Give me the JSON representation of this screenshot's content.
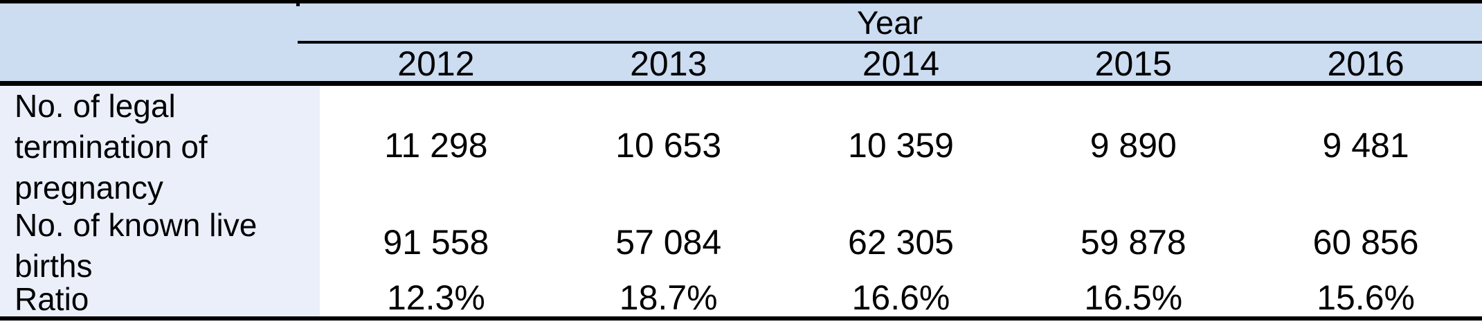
{
  "colors": {
    "header_bg": "#ccdcf1",
    "label_column_bg": "#eaeffa",
    "border": "#000000",
    "text": "#000000"
  },
  "table": {
    "year_header": "Year",
    "years": [
      "2012",
      "2013",
      "2014",
      "2015",
      "2016"
    ],
    "rows": [
      {
        "label": "No. of legal\ntermination of\npregnancy",
        "values": [
          "11 298",
          "10 653",
          "10 359",
          "9 890",
          "9 481"
        ]
      },
      {
        "label": "No. of known live\nbirths",
        "values": [
          "91 558",
          "57 084",
          "62 305",
          "59 878",
          "60 856"
        ]
      },
      {
        "label": "Ratio",
        "values": [
          "12.3%",
          "18.7%",
          "16.6%",
          "16.5%",
          "15.6%"
        ]
      }
    ]
  },
  "chart_data": {
    "type": "table",
    "title": "",
    "column_group_header": "Year",
    "categories": [
      "2012",
      "2013",
      "2014",
      "2015",
      "2016"
    ],
    "series": [
      {
        "name": "No. of legal termination of pregnancy",
        "values": [
          11298,
          10653,
          10359,
          9890,
          9481
        ]
      },
      {
        "name": "No. of known live births",
        "values": [
          91558,
          57084,
          62305,
          59878,
          60856
        ]
      },
      {
        "name": "Ratio",
        "values": [
          "12.3%",
          "18.7%",
          "16.6%",
          "16.5%",
          "15.6%"
        ]
      }
    ]
  }
}
